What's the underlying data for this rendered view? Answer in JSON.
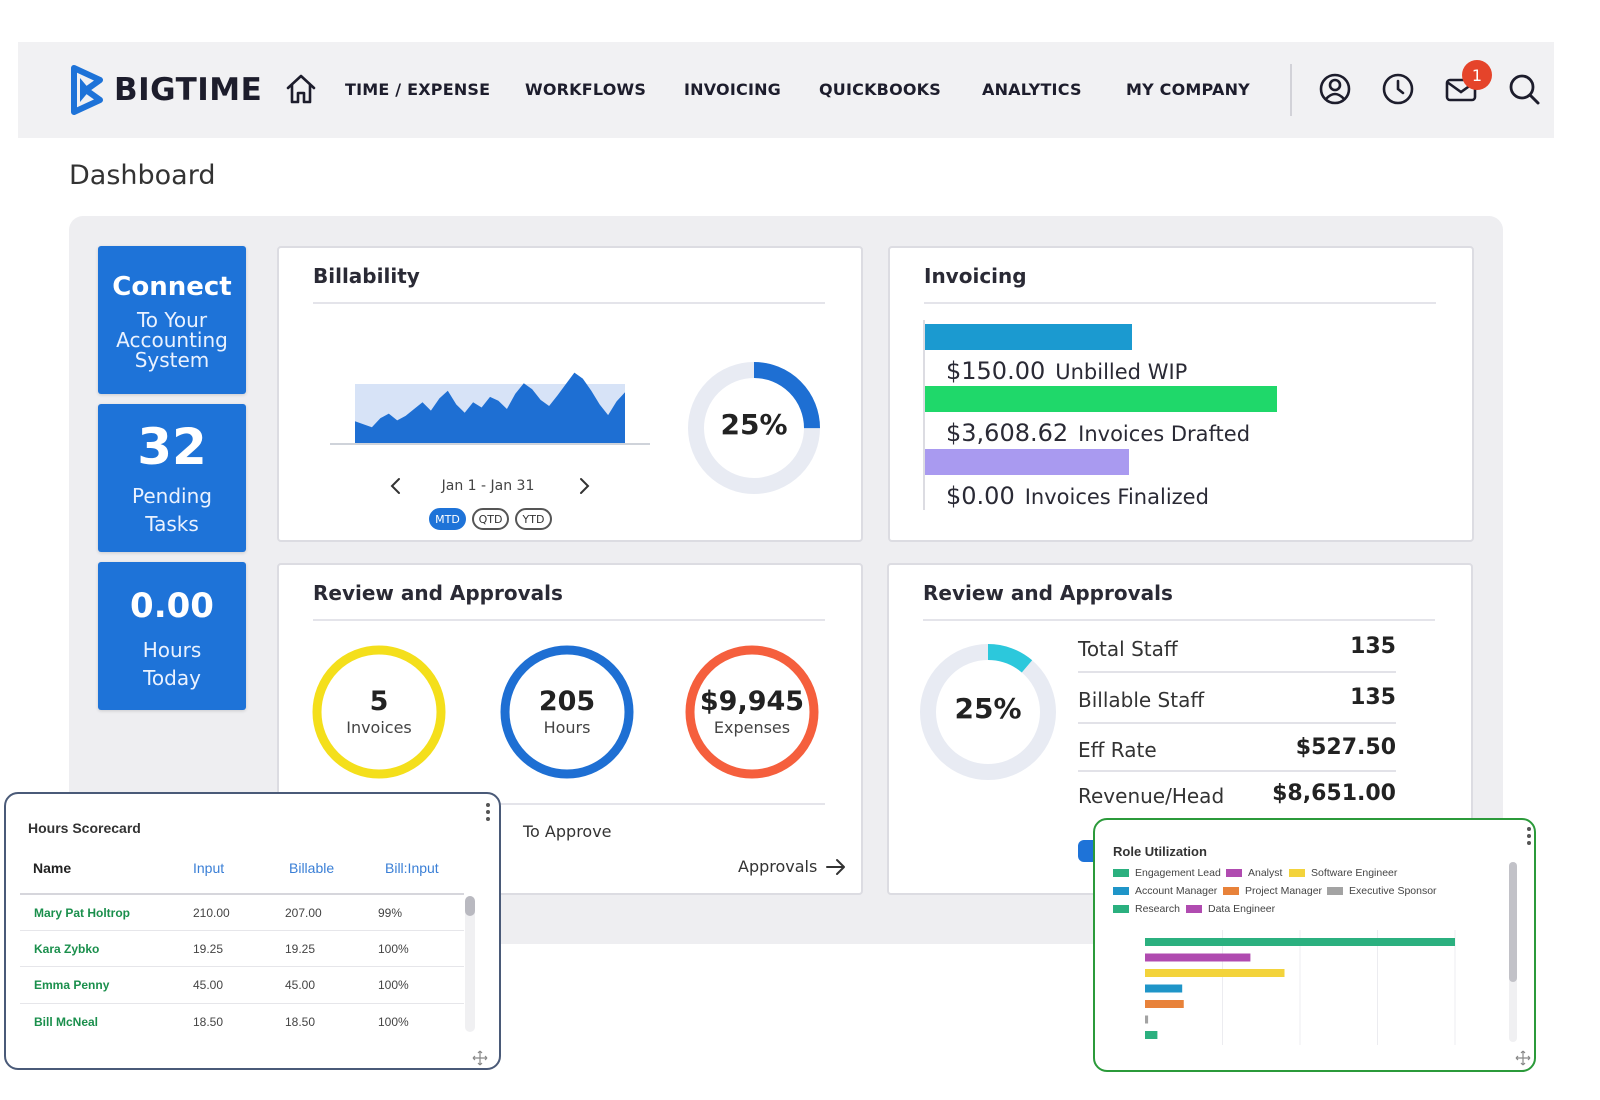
{
  "nav": {
    "logo_text": "BIGTIME",
    "items": [
      "TIME / EXPENSE",
      "WORKFLOWS",
      "INVOICING",
      "QUICKBOOKS",
      "ANALYTICS",
      "MY COMPANY"
    ],
    "mail_badge": "1"
  },
  "page_title": "Dashboard",
  "tiles": {
    "connect": {
      "title": "Connect",
      "line1": "To Your",
      "line2": "Accounting",
      "line3": "System"
    },
    "pending": {
      "value": "32",
      "line1": "Pending",
      "line2": "Tasks"
    },
    "hours": {
      "value": "0.00",
      "line1": "Hours",
      "line2": "Today"
    }
  },
  "billability": {
    "title": "Billability",
    "percent": "25%",
    "percent_value": 25,
    "date_range": "Jan 1 - Jan 31",
    "periods": [
      "MTD",
      "QTD",
      "YTD"
    ],
    "active_period": "MTD"
  },
  "invoicing": {
    "title": "Invoicing",
    "rows": [
      {
        "amount": "$150.00",
        "label": "Unbilled WIP",
        "color": "#1b9ad0"
      },
      {
        "amount": "$3,608.62",
        "label": "Invoices Drafted",
        "color": "#1fd86a"
      },
      {
        "amount": "$0.00",
        "label": "Invoices Finalized",
        "color": "#a99af0"
      }
    ]
  },
  "review_left": {
    "title": "Review and Approvals",
    "rings": [
      {
        "value": "5",
        "label": "Invoices",
        "color": "#f4df1b"
      },
      {
        "value": "205",
        "label": "Hours",
        "color": "#1e6fd3"
      },
      {
        "value": "$9,945",
        "label": "Expenses",
        "color": "#f55f3d"
      }
    ],
    "to_approve": "To Approve",
    "approvals_link": "Approvals"
  },
  "review_right": {
    "title": "Review and Approvals",
    "percent": "25%",
    "percent_value": 25,
    "stats": [
      {
        "label": "Total Staff",
        "value": "135"
      },
      {
        "label": "Billable Staff",
        "value": "135"
      },
      {
        "label": "Eff Rate",
        "value": "$527.50"
      },
      {
        "label": "Revenue/Head",
        "value": "$8,651.00"
      }
    ]
  },
  "hours_scorecard": {
    "title": "Hours Scorecard",
    "columns": [
      "Name",
      "Input",
      "Billable",
      "Bill:Input"
    ],
    "rows": [
      [
        "Mary Pat Holtrop",
        "210.00",
        "207.00",
        "99%"
      ],
      [
        "Kara Zybko",
        "19.25",
        "19.25",
        "100%"
      ],
      [
        "Emma Penny",
        "45.00",
        "45.00",
        "100%"
      ],
      [
        "Bill McNeal",
        "18.50",
        "18.50",
        "100%"
      ]
    ]
  },
  "role_utilization": {
    "title": "Role Utilization",
    "legend": [
      {
        "name": "Engagement Lead",
        "color": "#2bb07f"
      },
      {
        "name": "Analyst",
        "color": "#b04bb0"
      },
      {
        "name": "Software Engineer",
        "color": "#f3d33b"
      },
      {
        "name": "Account Manager",
        "color": "#1f95c8"
      },
      {
        "name": "Project Manager",
        "color": "#e8823a"
      },
      {
        "name": "Executive Sponsor",
        "color": "#a3a3a3"
      },
      {
        "name": "Research",
        "color": "#2bb07f"
      },
      {
        "name": "Data Engineer",
        "color": "#b04bb0"
      }
    ]
  },
  "chart_data": [
    {
      "type": "area",
      "title": "Billability",
      "values": [
        0.3,
        0.26,
        0.22,
        0.34,
        0.4,
        0.31,
        0.37,
        0.46,
        0.55,
        0.44,
        0.6,
        0.7,
        0.52,
        0.41,
        0.55,
        0.48,
        0.62,
        0.57,
        0.46,
        0.66,
        0.8,
        0.72,
        0.58,
        0.5,
        0.64,
        0.79,
        0.94,
        0.86,
        0.7,
        0.52,
        0.38,
        0.56,
        0.68
      ],
      "grid": false
    },
    {
      "type": "bar",
      "title": "Role Utilization",
      "orientation": "horizontal",
      "categories": [
        "Engagement Lead",
        "Analyst",
        "Software Engineer",
        "Account Manager",
        "Project Manager",
        "Executive Sponsor",
        "Research"
      ],
      "values": [
        100,
        34,
        45,
        12,
        12.5,
        1,
        4
      ],
      "colors": [
        "#2bb07f",
        "#b04bb0",
        "#f3d33b",
        "#1f95c8",
        "#e8823a",
        "#a3a3a3",
        "#2bb07f"
      ],
      "grid": true
    }
  ]
}
